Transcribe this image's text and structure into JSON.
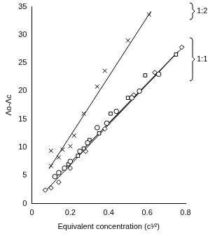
{
  "chart_data": {
    "type": "scatter",
    "x_label": "Equivalent concentration (c¹⁄²)",
    "y_label": "Λo-Λc",
    "xlim": [
      0,
      0.8
    ],
    "xticks": [
      0,
      0.2,
      0.4,
      0.6,
      0.8
    ],
    "ylim": [
      0,
      35
    ],
    "yticks": [
      0,
      5,
      10,
      15,
      20,
      25,
      30,
      35
    ],
    "grid": false,
    "legend": "none",
    "series": [
      {
        "group": "1:2",
        "marker": "x",
        "color": "#000000",
        "x": [
          0.1,
          0.1,
          0.14,
          0.16,
          0.2,
          0.22,
          0.27,
          0.34,
          0.38,
          0.5,
          0.61
        ],
        "values": [
          9.4,
          6.7,
          8.2,
          9.6,
          10.2,
          12.1,
          16,
          20.8,
          23.6,
          29,
          33.6
        ],
        "fit_x": [
          0.09,
          0.62
        ],
        "fit_values": [
          6.2,
          34.2
        ]
      },
      {
        "group": "1:1",
        "marker": "circle",
        "color": "#000000",
        "x": [
          0.12,
          0.14,
          0.17,
          0.2,
          0.25,
          0.29,
          0.34,
          0.39,
          0.44,
          0.52,
          0.56,
          0.66
        ],
        "values": [
          4.8,
          5.5,
          6.3,
          7.5,
          9.3,
          10.8,
          13.5,
          14.3,
          16.4,
          18.8,
          20,
          23
        ],
        "fit_x": [
          0.12,
          0.66
        ],
        "fit_values": [
          4.5,
          23.3
        ]
      },
      {
        "group": "1:1",
        "marker": "square",
        "color": "#000000",
        "x": [
          0.19,
          0.24,
          0.27,
          0.3,
          0.35,
          0.41,
          0.5,
          0.59,
          0.75
        ],
        "values": [
          7,
          8.5,
          9.8,
          11.3,
          12.5,
          16,
          18.8,
          22.8,
          26.5
        ],
        "fit_x": [
          0.17,
          0.76
        ],
        "fit_values": [
          6.2,
          27
        ]
      },
      {
        "group": "1:1",
        "marker": "diamond",
        "color": "#000000",
        "x": [
          0.07,
          0.1,
          0.14,
          0.2,
          0.28,
          0.38,
          0.53,
          0.64,
          0.78
        ],
        "values": [
          2.4,
          2.8,
          3.8,
          6.3,
          9.3,
          13.3,
          19.3,
          23.3,
          27.8
        ],
        "fit_x": [
          0.07,
          0.79
        ],
        "fit_values": [
          2.2,
          28
        ]
      }
    ]
  }
}
